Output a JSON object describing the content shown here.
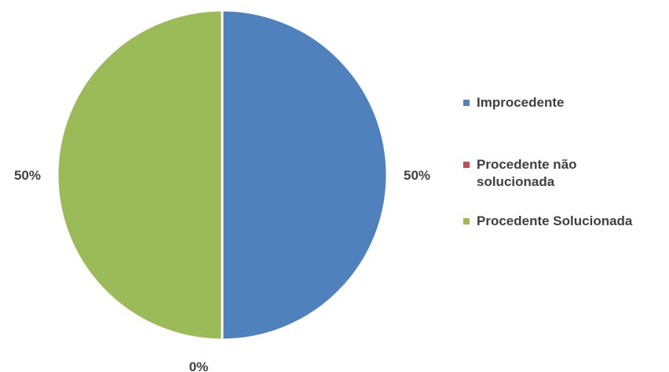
{
  "chart_data": {
    "type": "pie",
    "categories": [
      "Improcedente",
      "Procedente não solucionada",
      "Procedente Solucionada"
    ],
    "values": [
      50,
      0,
      50
    ],
    "value_labels": [
      "50%",
      "0%",
      "50%"
    ],
    "colors": [
      "#4F81BD",
      "#C0504D",
      "#9BBB59"
    ],
    "legend": {
      "position": "right",
      "entries": [
        {
          "label_line1": "Improcedente",
          "label_line2": ""
        },
        {
          "label_line1": "Procedente não",
          "label_line2": "solucionada"
        },
        {
          "label_line1": "Procedente Solucionada",
          "label_line2": ""
        }
      ]
    },
    "title": ""
  }
}
